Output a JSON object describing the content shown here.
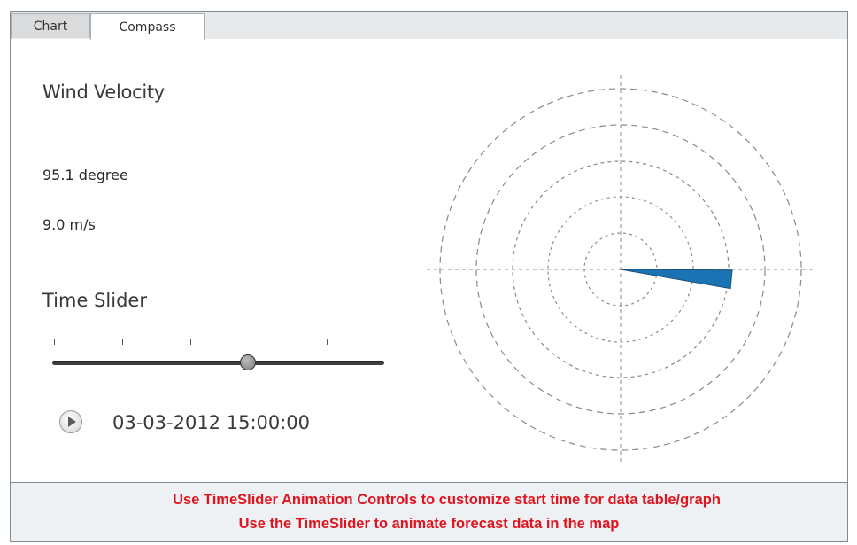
{
  "tabs": [
    {
      "label": "Chart",
      "active": false
    },
    {
      "label": "Compass",
      "active": true
    }
  ],
  "wind": {
    "title": "Wind Velocity",
    "direction": "95.1 degree",
    "speed": "9.0 m/s",
    "direction_degrees": 95.1
  },
  "slider": {
    "title": "Time Slider",
    "tick_count": 5,
    "position_fraction": 0.59,
    "timestamp": "03-03-2012 15:00:00"
  },
  "colors": {
    "accent": "#1a74b4",
    "footer_text": "#e0141e"
  },
  "icons": {
    "play": "play-icon"
  },
  "footer": {
    "line1": "Use TimeSlider Animation Controls to customize start time for data table/graph",
    "line2": "Use the TimeSlider to animate forecast data in the map"
  }
}
